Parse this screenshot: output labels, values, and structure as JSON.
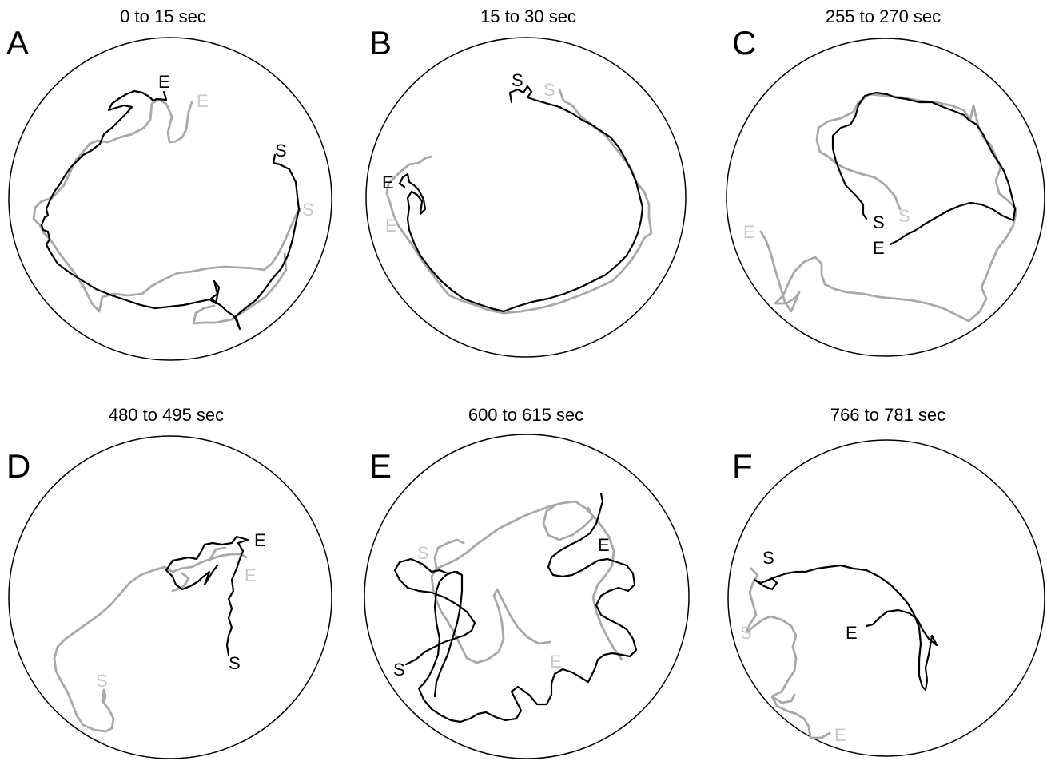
{
  "colors": {
    "current_track": "#000000",
    "previous_track": "#a8a8a8",
    "previous_label": "#c8c8c8"
  },
  "panels": [
    {
      "letter": "A",
      "title": "0 to 15 sec",
      "markers": {
        "black_start": "S",
        "black_end": "E",
        "gray_start": "S",
        "gray_end": "E"
      }
    },
    {
      "letter": "B",
      "title": "15 to 30 sec",
      "markers": {
        "black_start": "S",
        "black_end": "E",
        "gray_start": "S",
        "gray_end": "E"
      }
    },
    {
      "letter": "C",
      "title": "255 to 270 sec",
      "markers": {
        "black_start": "S",
        "black_end": "E",
        "gray_start": "S",
        "gray_end": "E"
      }
    },
    {
      "letter": "D",
      "title": "480 to 495 sec",
      "markers": {
        "black_start": "S",
        "black_end": "E",
        "gray_start": "S",
        "gray_end": "E"
      }
    },
    {
      "letter": "E",
      "title": "600 to 615 sec",
      "markers": {
        "black_start": "S",
        "black_end": "E",
        "gray_start": "S",
        "gray_end": "E"
      }
    },
    {
      "letter": "F",
      "title": "766 to 781 sec",
      "markers": {
        "black_start": "S",
        "black_end": "E",
        "gray_start": "S",
        "gray_end": "E"
      }
    }
  ]
}
